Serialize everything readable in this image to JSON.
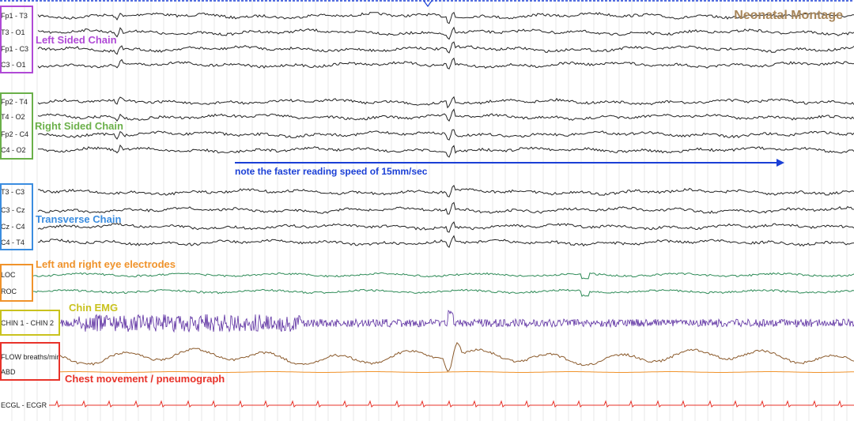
{
  "montage_title": "Neonatal Montage",
  "speed_note": "note the faster reading speed of 15mm/sec",
  "groups": {
    "left": {
      "title": "Left Sided Chain",
      "color": "#b04ad6"
    },
    "right": {
      "title": "Right Sided Chain",
      "color": "#6bb04a"
    },
    "transverse": {
      "title": "Transverse Chain",
      "color": "#3b8de0"
    },
    "eye": {
      "title": "Left and right eye electrodes",
      "color": "#f0932b"
    },
    "chin": {
      "title": "Chin EMG",
      "color": "#c9c21e"
    },
    "chest": {
      "title": "Chest movement / pneumograph",
      "color": "#e8332a"
    }
  },
  "channels": [
    {
      "label": "Fp1 - T3",
      "color": "#222222"
    },
    {
      "label": "T3 - O1",
      "color": "#222222"
    },
    {
      "label": "Fp1 - C3",
      "color": "#222222"
    },
    {
      "label": "C3 - O1",
      "color": "#222222"
    },
    {
      "label": "Fp2 - T4",
      "color": "#222222"
    },
    {
      "label": "T4 - O2",
      "color": "#222222"
    },
    {
      "label": "Fp2 - C4",
      "color": "#222222"
    },
    {
      "label": "C4 - O2",
      "color": "#222222"
    },
    {
      "label": "T3 - C3",
      "color": "#222222"
    },
    {
      "label": "C3 - Cz",
      "color": "#222222"
    },
    {
      "label": "Cz - C4",
      "color": "#222222"
    },
    {
      "label": "C4 - T4",
      "color": "#222222"
    },
    {
      "label": "LOC",
      "color": "#2e8b57"
    },
    {
      "label": "ROC",
      "color": "#2e8b57"
    },
    {
      "label": "CHIN 1 - CHIN 2",
      "color": "#5a2ca0"
    },
    {
      "label": "FLOW breaths/min",
      "color": "#8b5a2b"
    },
    {
      "label": "ABD",
      "color": "#f0932b"
    },
    {
      "label": "ECGL - ECGR",
      "color": "#e8332a"
    }
  ]
}
